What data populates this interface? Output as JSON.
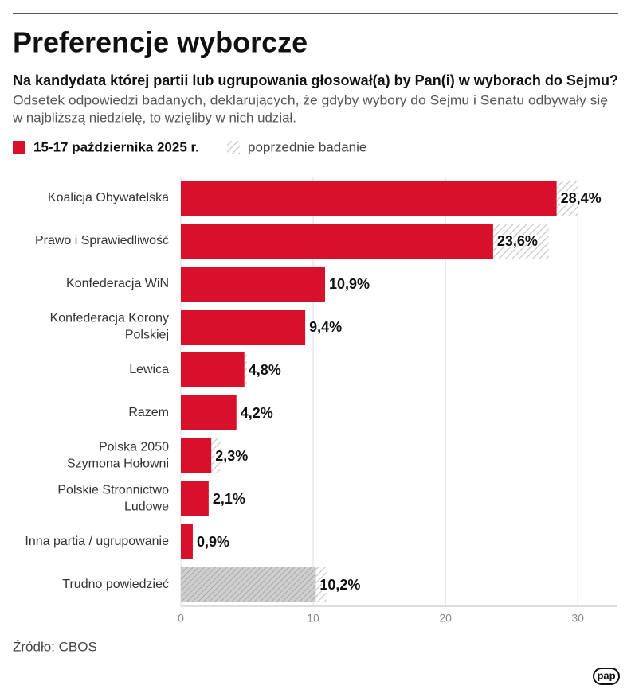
{
  "title": "Preferencje wyborcze",
  "subtitle": "Na kandydata której partii lub ugrupowania głosował(a) by Pan(i) w wyborach do Sejmu?",
  "description": [
    "Odsetek odpowiedzi badanych, deklarujących, że gdyby wybory do Sejmu i Senatu odbywały się",
    "w najbliższą niedzielę, to wzięliby w nich udział."
  ],
  "source": "Źródło: CBOS",
  "logo": "pap",
  "chart_data": {
    "type": "bar",
    "orientation": "horizontal",
    "categories": [
      "Koalicja Obywatelska",
      "Prawo i Sprawiedliwość",
      "Konfederacja WiN",
      "Konfederacja Korony\nPolskiej",
      "Lewica",
      "Razem",
      "Polska 2050\nSzymona Hołowni",
      "Polskie Stronnictwo\nLudowe",
      "Inna partia / ugrupowanie",
      "Trudno powiedzieć"
    ],
    "series": [
      {
        "name": "15-17 października 2025 r.",
        "color": "#d7102b",
        "colors": [
          "#d7102b",
          "#d7102b",
          "#d7102b",
          "#d7102b",
          "#d7102b",
          "#d7102b",
          "#d7102b",
          "#d7102b",
          "#d7102b",
          "#b9b9b9"
        ],
        "values": [
          28.4,
          23.6,
          10.9,
          9.4,
          4.8,
          4.2,
          2.3,
          2.1,
          0.9,
          10.2
        ],
        "value_labels": [
          "28,4%",
          "23,6%",
          "10,9%",
          "9,4%",
          "4,8%",
          "4,2%",
          "2,3%",
          "2,1%",
          "0,9%",
          "10,2%"
        ]
      },
      {
        "name": "poprzednie badanie",
        "color": "#d9d9d9",
        "pattern": "hatch",
        "values": [
          30.0,
          27.8,
          10.5,
          5.9,
          5.0,
          3.6,
          3.0,
          2.0,
          0.6,
          11.0
        ]
      }
    ],
    "xlim": [
      0,
      33
    ],
    "xticks": [
      0,
      10,
      20,
      30
    ],
    "grid": true
  }
}
